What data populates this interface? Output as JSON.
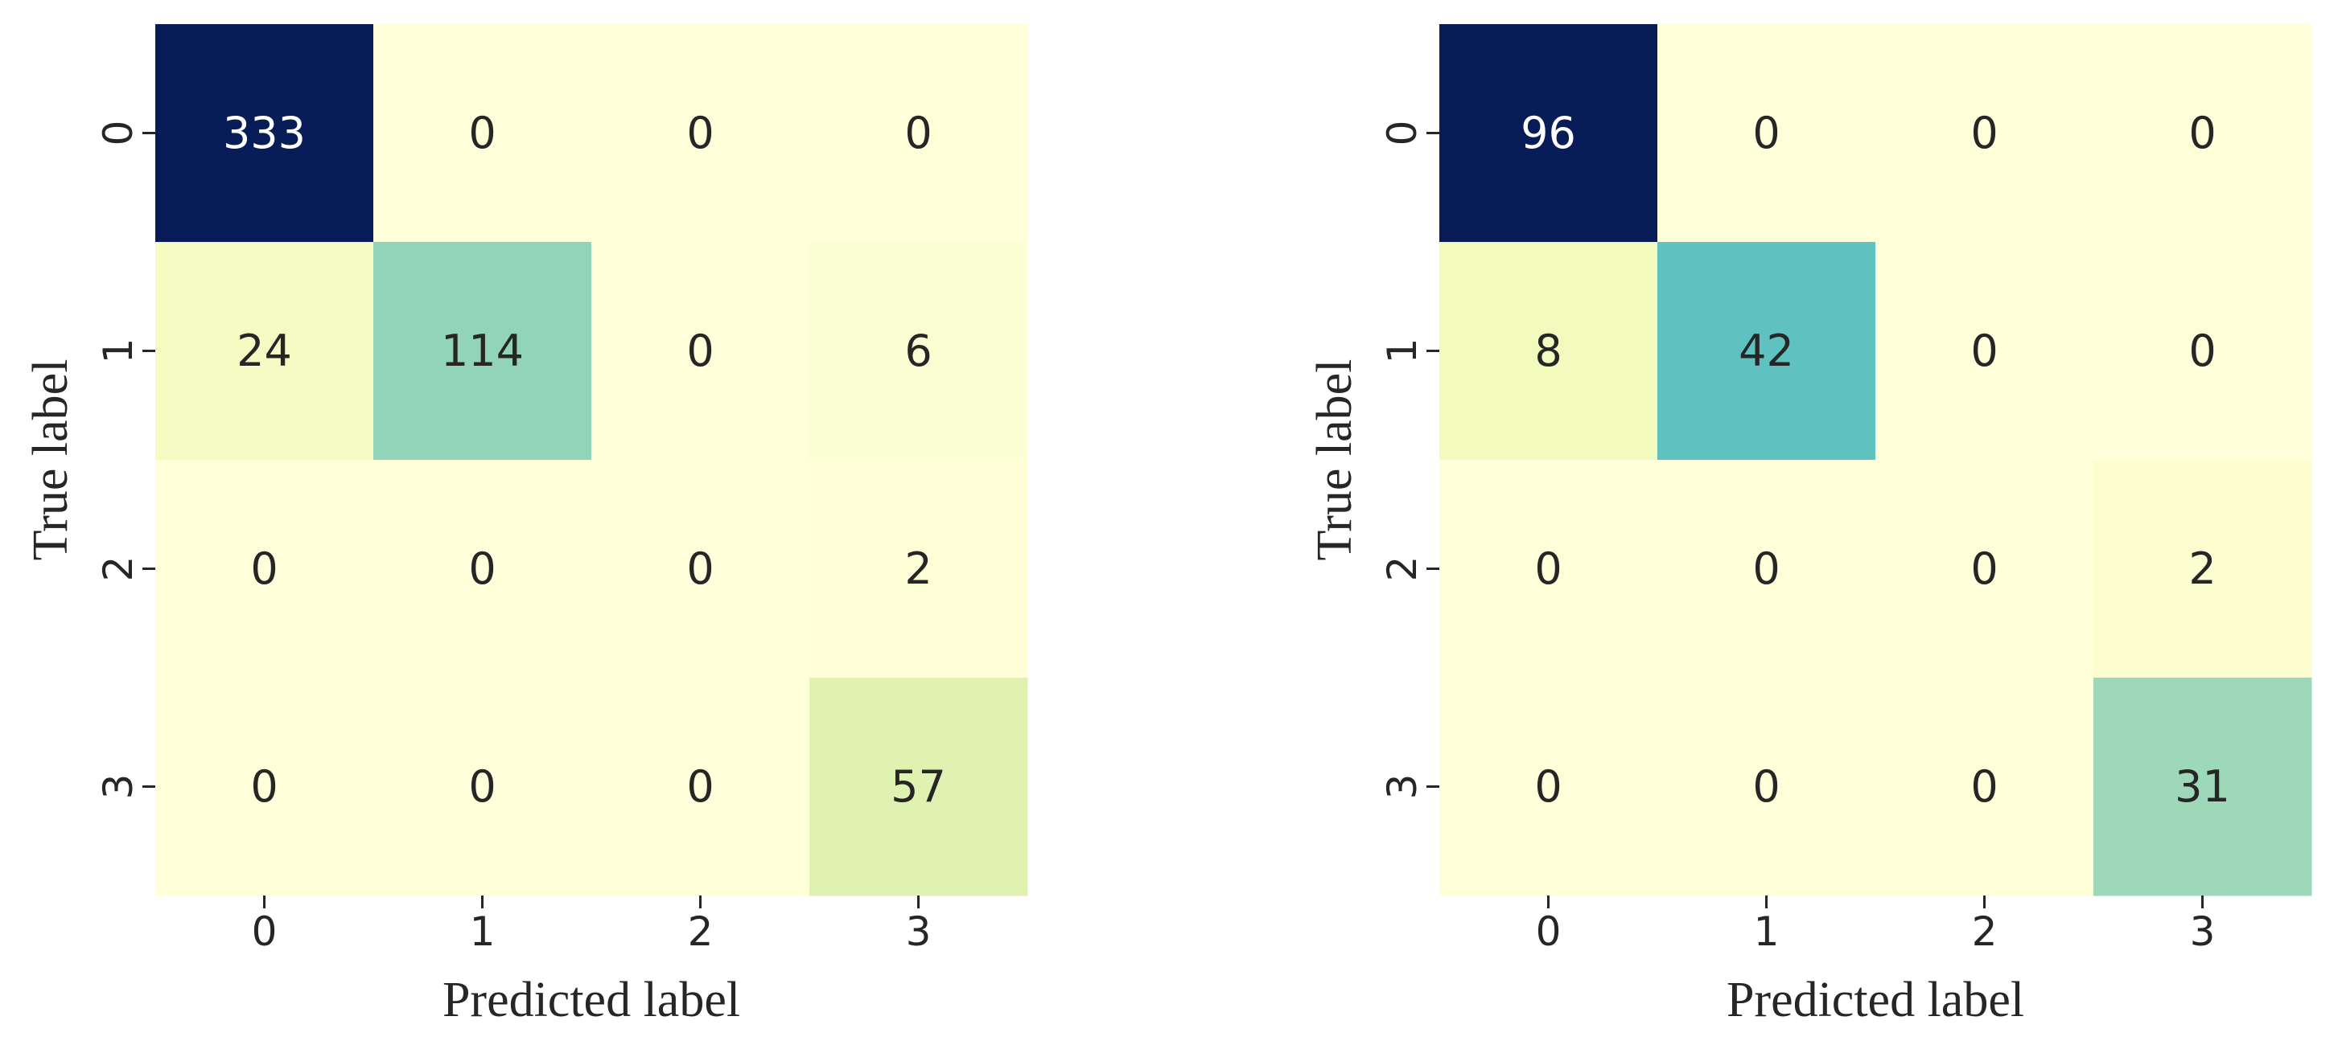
{
  "chart_data": [
    {
      "type": "heatmap",
      "title": "",
      "xlabel": "Predicted label",
      "ylabel": "True label",
      "x_categories": [
        "0",
        "1",
        "2",
        "3"
      ],
      "y_categories": [
        "0",
        "1",
        "2",
        "3"
      ],
      "values": [
        [
          333,
          0,
          0,
          0
        ],
        [
          24,
          114,
          0,
          6
        ],
        [
          0,
          0,
          0,
          2
        ],
        [
          0,
          0,
          0,
          57
        ]
      ],
      "colormap": "YlGnBu",
      "colorbar": false,
      "grid": false
    },
    {
      "type": "heatmap",
      "title": "",
      "xlabel": "Predicted label",
      "ylabel": "True label",
      "x_categories": [
        "0",
        "1",
        "2",
        "3"
      ],
      "y_categories": [
        "0",
        "1",
        "2",
        "3"
      ],
      "values": [
        [
          96,
          0,
          0,
          0
        ],
        [
          8,
          42,
          0,
          0
        ],
        [
          0,
          0,
          0,
          2
        ],
        [
          0,
          0,
          0,
          31
        ]
      ],
      "colormap": "YlGnBu",
      "colorbar": false,
      "grid": false
    }
  ]
}
